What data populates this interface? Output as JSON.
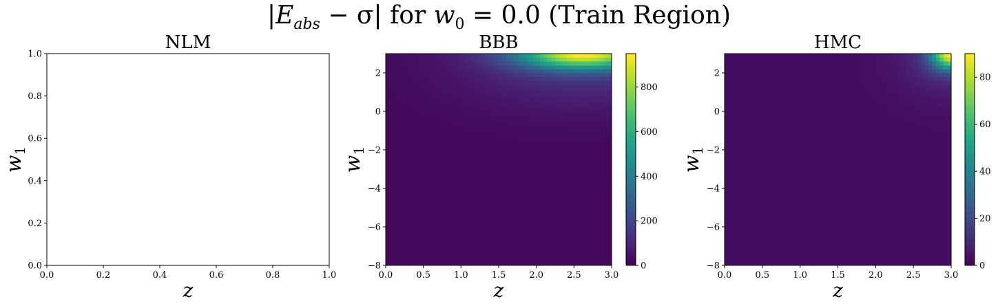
{
  "suptitle": {
    "abs_open": "|",
    "E": "E",
    "E_sub": "abs",
    "minus_sigma": " − σ",
    "abs_close": "|",
    "for_text": " for ",
    "w": "w",
    "w_sub": "0",
    "eq_value": " = 0.0 (Train Region)"
  },
  "colors": {
    "viridis_dark": "#440154",
    "viridis_yellow": "#fde725",
    "axis": "#000000",
    "background": "#ffffff"
  },
  "chart_data": [
    {
      "type": "heatmap",
      "title": "NLM",
      "xlabel": "z",
      "ylabel_base": "w",
      "ylabel_sub": "1",
      "xlim": [
        0,
        1
      ],
      "ylim": [
        0,
        1
      ],
      "xticks": [
        0.0,
        0.2,
        0.4,
        0.6,
        0.8,
        1.0
      ],
      "xtick_labels": [
        "0.0",
        "0.2",
        "0.4",
        "0.6",
        "0.8",
        "1.0"
      ],
      "yticks": [
        0.0,
        0.2,
        0.4,
        0.6,
        0.8,
        1.0
      ],
      "ytick_labels": [
        "0.0",
        "0.2",
        "0.4",
        "0.6",
        "0.8",
        "1.0"
      ],
      "empty": true,
      "colorbar": null
    },
    {
      "type": "heatmap",
      "title": "BBB",
      "xlabel": "z",
      "ylabel_base": "w",
      "ylabel_sub": "1",
      "xlim": [
        0,
        3
      ],
      "ylim": [
        -8,
        3
      ],
      "xticks": [
        0.0,
        0.5,
        1.0,
        1.5,
        2.0,
        2.5,
        3.0
      ],
      "xtick_labels": [
        "0.0",
        "0.5",
        "1.0",
        "1.5",
        "2.0",
        "2.5",
        "3.0"
      ],
      "yticks": [
        -8,
        -6,
        -4,
        -2,
        0,
        2
      ],
      "ytick_labels": [
        "−8",
        "−6",
        "−4",
        "−2",
        "0",
        "2"
      ],
      "colorbar": {
        "vmin": 0,
        "vmax": 950,
        "ticks": [
          0,
          200,
          400,
          600,
          800
        ],
        "tick_labels": [
          "0",
          "200",
          "400",
          "600",
          "800"
        ]
      },
      "field": {
        "peak_value": 950,
        "peak_z": 2.62,
        "peak_w1": 3.0,
        "sigma_z": 0.6,
        "sigma_w1": 0.55,
        "broad_value": 150,
        "broad_sigma_z": 1.1,
        "broad_sigma_w1": 1.8,
        "base_value": 20
      }
    },
    {
      "type": "heatmap",
      "title": "HMC",
      "xlabel": "z",
      "ylabel_base": "w",
      "ylabel_sub": "1",
      "xlim": [
        0,
        3
      ],
      "ylim": [
        -8,
        3
      ],
      "xticks": [
        0.0,
        0.5,
        1.0,
        1.5,
        2.0,
        2.5,
        3.0
      ],
      "xtick_labels": [
        "0.0",
        "0.5",
        "1.0",
        "1.5",
        "2.0",
        "2.5",
        "3.0"
      ],
      "yticks": [
        -8,
        -6,
        -4,
        -2,
        0,
        2
      ],
      "ytick_labels": [
        "−8",
        "−6",
        "−4",
        "−2",
        "0",
        "2"
      ],
      "colorbar": {
        "vmin": 0,
        "vmax": 90,
        "ticks": [
          0,
          20,
          40,
          60,
          80
        ],
        "tick_labels": [
          "0",
          "20",
          "40",
          "60",
          "80"
        ]
      },
      "field": {
        "peak_value": 90,
        "peak_z": 3.0,
        "peak_w1": 3.0,
        "sigma_z": 0.18,
        "sigma_w1": 0.55,
        "broad_value": 12,
        "broad_sigma_z": 0.45,
        "broad_sigma_w1": 1.4,
        "base_value": 3
      }
    }
  ]
}
